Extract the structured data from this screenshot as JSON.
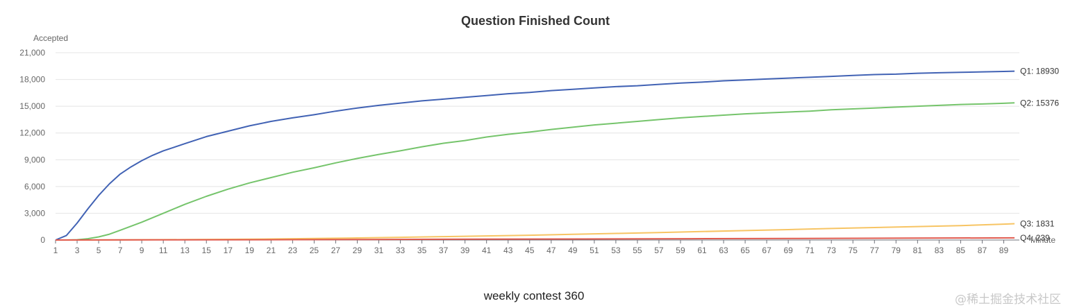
{
  "caption": "weekly contest 360",
  "watermark": "@稀土掘金技术社区",
  "chart_data": {
    "type": "line",
    "title": "Question Finished Count",
    "ylabel": "Accepted",
    "xlabel": "Minute",
    "ylim": [
      0,
      21000
    ],
    "yticks": [
      "0",
      "3,000",
      "6,000",
      "9,000",
      "12,000",
      "15,000",
      "18,000",
      "21,000"
    ],
    "xticks": [
      "1",
      "3",
      "5",
      "7",
      "9",
      "11",
      "13",
      "15",
      "17",
      "19",
      "21",
      "23",
      "25",
      "27",
      "29",
      "31",
      "33",
      "35",
      "37",
      "39",
      "41",
      "43",
      "45",
      "47",
      "49",
      "51",
      "53",
      "55",
      "57",
      "59",
      "61",
      "63",
      "65",
      "67",
      "69",
      "71",
      "73",
      "75",
      "77",
      "79",
      "81",
      "83",
      "85",
      "87",
      "89"
    ],
    "grid": true,
    "series": [
      {
        "name": "Q1",
        "color": "#4162b4",
        "end_label": "Q1: 18930",
        "x": [
          1,
          2,
          3,
          4,
          5,
          6,
          7,
          8,
          9,
          10,
          11,
          12,
          13,
          15,
          17,
          19,
          21,
          23,
          25,
          27,
          29,
          31,
          33,
          35,
          37,
          39,
          41,
          43,
          45,
          47,
          49,
          51,
          53,
          55,
          57,
          59,
          61,
          63,
          65,
          67,
          69,
          71,
          73,
          75,
          77,
          79,
          81,
          83,
          85,
          87,
          89,
          90
        ],
        "y": [
          0,
          500,
          1900,
          3500,
          5000,
          6300,
          7400,
          8200,
          8900,
          9500,
          10000,
          10400,
          10800,
          11600,
          12200,
          12800,
          13300,
          13700,
          14050,
          14450,
          14800,
          15100,
          15350,
          15600,
          15800,
          16000,
          16200,
          16400,
          16550,
          16750,
          16900,
          17050,
          17200,
          17300,
          17450,
          17600,
          17700,
          17850,
          17950,
          18050,
          18150,
          18250,
          18350,
          18450,
          18550,
          18600,
          18700,
          18750,
          18800,
          18850,
          18900,
          18930
        ]
      },
      {
        "name": "Q2",
        "color": "#75c46b",
        "end_label": "Q2: 15376",
        "x": [
          1,
          2,
          3,
          4,
          5,
          6,
          7,
          9,
          11,
          13,
          15,
          17,
          19,
          21,
          23,
          25,
          27,
          29,
          31,
          33,
          35,
          37,
          39,
          41,
          43,
          45,
          47,
          49,
          51,
          53,
          55,
          57,
          59,
          61,
          63,
          65,
          67,
          69,
          71,
          73,
          75,
          77,
          79,
          81,
          83,
          85,
          87,
          89,
          90
        ],
        "y": [
          0,
          0,
          30,
          150,
          350,
          650,
          1100,
          2000,
          3000,
          4000,
          4900,
          5700,
          6400,
          7000,
          7600,
          8100,
          8650,
          9150,
          9600,
          10000,
          10450,
          10850,
          11150,
          11550,
          11850,
          12100,
          12400,
          12650,
          12900,
          13100,
          13300,
          13500,
          13700,
          13850,
          14000,
          14150,
          14250,
          14350,
          14450,
          14600,
          14700,
          14800,
          14900,
          15000,
          15100,
          15200,
          15250,
          15330,
          15376
        ]
      },
      {
        "name": "Q3",
        "color": "#f7c463",
        "end_label": "Q3: 1831",
        "x": [
          1,
          3,
          5,
          9,
          13,
          17,
          21,
          25,
          29,
          33,
          37,
          41,
          45,
          49,
          53,
          57,
          61,
          65,
          69,
          73,
          77,
          81,
          85,
          89,
          90
        ],
        "y": [
          0,
          0,
          10,
          30,
          50,
          80,
          120,
          170,
          230,
          300,
          380,
          460,
          540,
          640,
          740,
          840,
          950,
          1060,
          1170,
          1290,
          1400,
          1510,
          1620,
          1780,
          1831
        ]
      },
      {
        "name": "Q4",
        "color": "#e05a4e",
        "end_label": "Q4: 239",
        "x": [
          1,
          5,
          10,
          20,
          30,
          40,
          50,
          60,
          70,
          80,
          90
        ],
        "y": [
          0,
          5,
          15,
          35,
          60,
          90,
          120,
          150,
          180,
          210,
          239
        ]
      }
    ]
  }
}
